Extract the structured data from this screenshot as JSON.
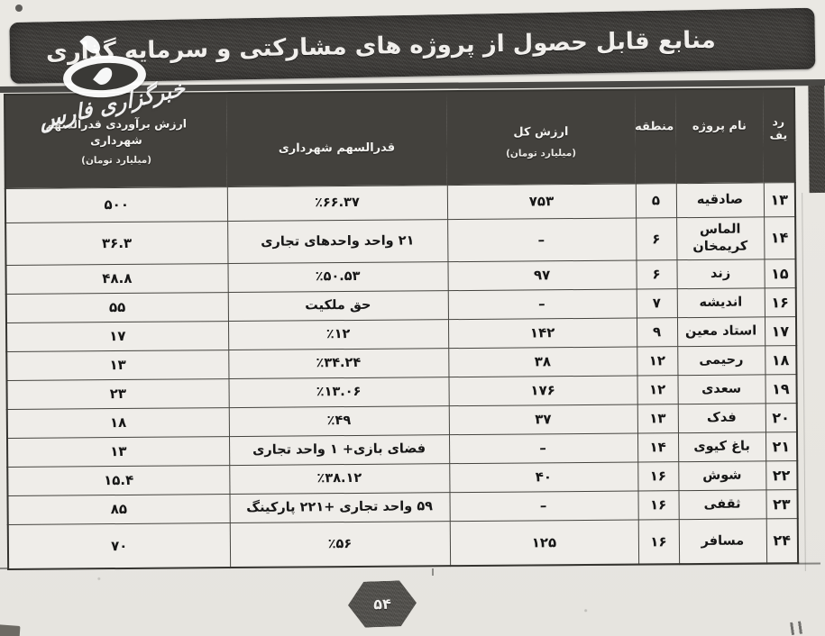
{
  "title": "منابع قابل حصول از پروژه های مشارکتی و سرمایه گذاری",
  "watermark": {
    "text": "خبرگزاری فارس"
  },
  "page_number": "۵۴",
  "colors": {
    "band": "#43413d",
    "paper": "#e9e7e2",
    "cell": "#efede9",
    "ink": "#161616",
    "band_text": "#f4f3f0"
  },
  "table": {
    "columns": [
      {
        "key": "radif",
        "label": "رد\nیف",
        "sub": ""
      },
      {
        "key": "name",
        "label": "نام پروژه",
        "sub": ""
      },
      {
        "key": "region",
        "label": "منطقه",
        "sub": ""
      },
      {
        "key": "total",
        "label": "ارزش کل",
        "sub": "(میلیارد تومان)"
      },
      {
        "key": "share",
        "label": "قدرالسهم شهرداری",
        "sub": ""
      },
      {
        "key": "est",
        "label": "ارزش برآوردی قدرالسهم\nشهرداری",
        "sub": "(میلیارد تومان)"
      }
    ],
    "rows": [
      {
        "radif": "۱۳",
        "name": "صادقیه",
        "region": "۵",
        "total": "۷۵۳",
        "share": "٪۶۶.۳۷",
        "est": "۵۰۰"
      },
      {
        "radif": "۱۴",
        "name": "الماس کریمخان",
        "region": "۶",
        "total": "–",
        "share": "۲۱ واحد واحدهای تجاری",
        "est": "۳۶.۳"
      },
      {
        "radif": "۱۵",
        "name": "زند",
        "region": "۶",
        "total": "۹۷",
        "share": "٪۵۰.۵۳",
        "est": "۴۸.۸"
      },
      {
        "radif": "۱۶",
        "name": "اندیشه",
        "region": "۷",
        "total": "–",
        "share": "حق ملکیت",
        "est": "۵۵"
      },
      {
        "radif": "۱۷",
        "name": "استاد معین",
        "region": "۹",
        "total": "۱۴۲",
        "share": "٪۱۲",
        "est": "۱۷"
      },
      {
        "radif": "۱۸",
        "name": "رحیمی",
        "region": "۱۲",
        "total": "۳۸",
        "share": "٪۳۴.۲۴",
        "est": "۱۳"
      },
      {
        "radif": "۱۹",
        "name": "سعدی",
        "region": "۱۲",
        "total": "۱۷۶",
        "share": "٪۱۳.۰۶",
        "est": "۲۳"
      },
      {
        "radif": "۲۰",
        "name": "فدک",
        "region": "۱۳",
        "total": "۳۷",
        "share": "٪۴۹",
        "est": "۱۸"
      },
      {
        "radif": "۲۱",
        "name": "باغ کیوی",
        "region": "۱۴",
        "total": "–",
        "share": "فضای بازی+ ۱ واحد تجاری",
        "est": "۱۳"
      },
      {
        "radif": "۲۲",
        "name": "شوش",
        "region": "۱۶",
        "total": "۴۰",
        "share": "٪۳۸.۱۲",
        "est": "۱۵.۴"
      },
      {
        "radif": "۲۳",
        "name": "ثقفی",
        "region": "۱۶",
        "total": "–",
        "share": "۵۹ واحد تجاری +۲۲۱ پارکینگ",
        "est": "۸۵"
      },
      {
        "radif": "۲۴",
        "name": "مسافر",
        "region": "۱۶",
        "total": "۱۲۵",
        "share": "٪۵۶",
        "est": "۷۰"
      }
    ]
  }
}
